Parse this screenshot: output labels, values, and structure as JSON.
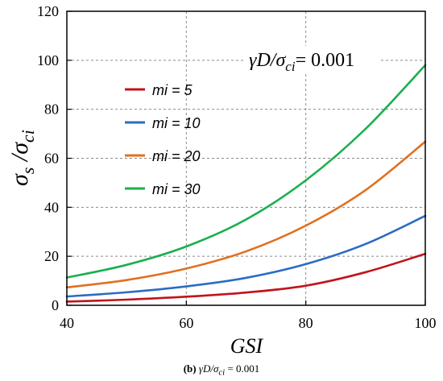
{
  "chart_data": {
    "type": "line",
    "annotation_prefix": "γD/σ",
    "annotation_sub": "ci",
    "annotation_suffix": "= 0.001",
    "xlabel": "GSI",
    "ylabel_main": "σ",
    "ylabel_sub1": "s",
    "ylabel_slash": " /",
    "ylabel_main2": "σ",
    "ylabel_sub2": "ci",
    "xlim": [
      40,
      100
    ],
    "ylim": [
      0,
      120
    ],
    "xticks": [
      40,
      60,
      80,
      100
    ],
    "yticks": [
      0,
      20,
      40,
      60,
      80,
      100,
      120
    ],
    "grid": true,
    "legend_position": "upper-left",
    "x": [
      40,
      50,
      60,
      70,
      80,
      90,
      100
    ],
    "series": [
      {
        "name": "mi = 5",
        "color": "#c0141b",
        "values": [
          1.5,
          2.3,
          3.5,
          5.2,
          8.0,
          13.5,
          21.0
        ]
      },
      {
        "name": "mi = 10",
        "color": "#2b6cc4",
        "values": [
          3.6,
          5.3,
          7.7,
          11.2,
          16.8,
          25.0,
          36.5
        ]
      },
      {
        "name": "mi = 20",
        "color": "#e07020",
        "values": [
          7.3,
          10.3,
          15.0,
          22.0,
          32.5,
          47.0,
          66.8
        ]
      },
      {
        "name": "mi = 30",
        "color": "#1aaf4e",
        "values": [
          11.3,
          16.5,
          24.0,
          35.0,
          51.0,
          72.0,
          98.0
        ]
      }
    ]
  },
  "caption": {
    "label": "(b)",
    "expr_prefix": "γD/σ",
    "expr_sub": "ci",
    "expr_suffix": "= 0.001"
  }
}
